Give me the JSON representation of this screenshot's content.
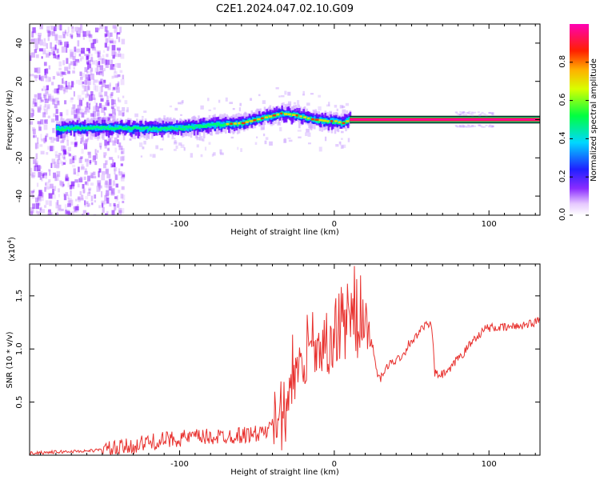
{
  "title": "C2E1.2024.047.02.10.G09",
  "colors": {
    "snr_line": "#e8322f",
    "frame": "#000000",
    "background": "#ffffff"
  },
  "chart_data": [
    {
      "type": "heatmap",
      "xlabel": "Height of straight line (km)",
      "ylabel": "Frequency (Hz)",
      "xlim": [
        -197,
        133
      ],
      "ylim": [
        -50,
        50
      ],
      "xticks": [
        {
          "value": -100,
          "label": "-100"
        },
        {
          "value": 0,
          "label": "0"
        },
        {
          "value": 100,
          "label": "100"
        }
      ],
      "yticks": [
        {
          "value": -40,
          "label": "-40"
        },
        {
          "value": -20,
          "label": "-20"
        },
        {
          "value": 0,
          "label": "0"
        },
        {
          "value": 20,
          "label": "20"
        },
        {
          "value": 40,
          "label": "40"
        }
      ],
      "colorbar": {
        "label": "Normalized spectral amplitude",
        "range": [
          0,
          1
        ],
        "colormap": "rainbow (white-violet-blue-cyan-green-yellow-red-magenta)",
        "ticks": [
          {
            "value": 0.0,
            "label": "0.0"
          },
          {
            "value": 0.2,
            "label": "0.2"
          },
          {
            "value": 0.4,
            "label": "0.4"
          },
          {
            "value": 0.6,
            "label": "0.6"
          },
          {
            "value": 0.8,
            "label": "0.8"
          }
        ]
      },
      "ridge": {
        "x": [
          -197,
          -180,
          -160,
          -140,
          -120,
          -100,
          -80,
          -60,
          -45,
          -35,
          -25,
          -15,
          -5,
          0,
          5,
          10,
          50,
          100,
          133
        ],
        "frequency": [
          -5,
          -5,
          -4.5,
          -4.5,
          -5,
          -4.5,
          -3,
          -2,
          1,
          3,
          2,
          0,
          -1,
          -1,
          -2,
          0,
          0,
          0,
          0
        ]
      }
    },
    {
      "type": "line",
      "xlabel": "Height of straight line (km)",
      "ylabel": "SNR (10 * v/v)",
      "yscale_label": "(x10",
      "yscale_exp": "4",
      "yscale_close": ")",
      "xlim": [
        -197,
        133
      ],
      "ylim": [
        0,
        1.8
      ],
      "xticks": [
        {
          "value": -100,
          "label": "-100"
        },
        {
          "value": 0,
          "label": "0"
        },
        {
          "value": 100,
          "label": "100"
        }
      ],
      "yticks": [
        {
          "value": 0.5,
          "label": "0.5"
        },
        {
          "value": 1.0,
          "label": "1.0"
        },
        {
          "value": 1.5,
          "label": "1.5"
        }
      ],
      "series": [
        {
          "color": "#e8322f",
          "x": [
            -197,
            -180,
            -160,
            -150,
            -140,
            -130,
            -120,
            -110,
            -100,
            -90,
            -80,
            -70,
            -60,
            -50,
            -45,
            -40,
            -35,
            -30,
            -25,
            -20,
            -15,
            -10,
            -5,
            0,
            5,
            10,
            13,
            16,
            20,
            23,
            25,
            28,
            30,
            35,
            40,
            45,
            48,
            52,
            55,
            58,
            60,
            63,
            65,
            68,
            70,
            75,
            80,
            83,
            88,
            92,
            95,
            98,
            100,
            110,
            120,
            130,
            133
          ],
          "y": [
            0.02,
            0.03,
            0.04,
            0.05,
            0.06,
            0.09,
            0.12,
            0.14,
            0.16,
            0.17,
            0.17,
            0.18,
            0.19,
            0.2,
            0.22,
            0.25,
            0.35,
            0.55,
            0.75,
            0.85,
            0.95,
            1.0,
            1.05,
            1.1,
            1.2,
            1.25,
            1.35,
            1.3,
            1.25,
            1.2,
            1.0,
            0.75,
            0.72,
            0.85,
            0.9,
            0.95,
            1.05,
            1.1,
            1.15,
            1.22,
            1.22,
            1.22,
            0.77,
            0.75,
            0.76,
            0.8,
            0.92,
            0.95,
            1.05,
            1.12,
            1.15,
            1.2,
            1.2,
            1.2,
            1.22,
            1.25,
            1.28
          ]
        }
      ]
    }
  ]
}
